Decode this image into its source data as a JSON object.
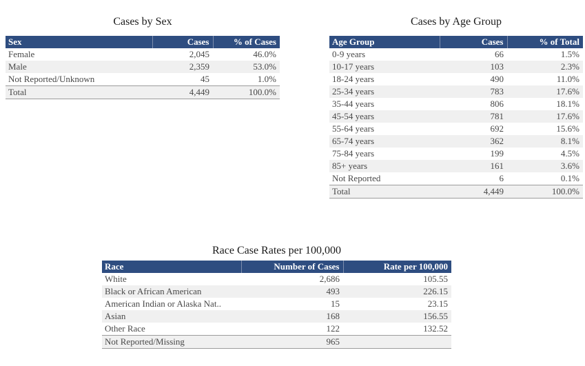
{
  "colors": {
    "header_bg": "#2e4d80",
    "header_text": "#ffffff",
    "alt_row_bg": "#f0f0f0",
    "body_text": "#484848",
    "title_text": "#1a1a1a",
    "total_rule": "#9b9b9b"
  },
  "tables": [
    {
      "id": "cases-by-sex",
      "title": "Cases by Sex",
      "columns": [
        "Sex",
        "Cases",
        "% of Cases"
      ],
      "rows": [
        [
          "Female",
          "2,045",
          "46.0%"
        ],
        [
          "Male",
          "2,359",
          "53.0%"
        ],
        [
          "Not Reported/Unknown",
          "45",
          "1.0%"
        ],
        [
          "Total",
          "4,449",
          "100.0%"
        ]
      ]
    },
    {
      "id": "cases-by-age-group",
      "title": "Cases by Age Group",
      "columns": [
        "Age Group",
        "Cases",
        "% of Total"
      ],
      "rows": [
        [
          "0-9 years",
          "66",
          "1.5%"
        ],
        [
          "10-17 years",
          "103",
          "2.3%"
        ],
        [
          "18-24 years",
          "490",
          "11.0%"
        ],
        [
          "25-34 years",
          "783",
          "17.6%"
        ],
        [
          "35-44 years",
          "806",
          "18.1%"
        ],
        [
          "45-54 years",
          "781",
          "17.6%"
        ],
        [
          "55-64 years",
          "692",
          "15.6%"
        ],
        [
          "65-74 years",
          "362",
          "8.1%"
        ],
        [
          "75-84 years",
          "199",
          "4.5%"
        ],
        [
          "85+ years",
          "161",
          "3.6%"
        ],
        [
          "Not Reported",
          "6",
          "0.1%"
        ],
        [
          "Total",
          "4,449",
          "100.0%"
        ]
      ]
    },
    {
      "id": "race-case-rates",
      "title": "Race Case Rates per 100,000",
      "columns": [
        "Race",
        "Number of Cases",
        "Rate per 100,000"
      ],
      "rows": [
        [
          "White",
          "2,686",
          "105.55"
        ],
        [
          "Black or African American",
          "493",
          "226.15"
        ],
        [
          "American Indian or Alaska Nat..",
          "15",
          "23.15"
        ],
        [
          "Asian",
          "168",
          "156.55"
        ],
        [
          "Other Race",
          "122",
          "132.52"
        ],
        [
          "Not Reported/Missing",
          "965",
          ""
        ]
      ]
    }
  ],
  "chart_data": [
    {
      "type": "table",
      "title": "Cases by Sex",
      "columns": [
        "Sex",
        "Cases",
        "% of Cases"
      ],
      "rows": [
        [
          "Female",
          2045,
          46.0
        ],
        [
          "Male",
          2359,
          53.0
        ],
        [
          "Not Reported/Unknown",
          45,
          1.0
        ],
        [
          "Total",
          4449,
          100.0
        ]
      ]
    },
    {
      "type": "table",
      "title": "Cases by Age Group",
      "columns": [
        "Age Group",
        "Cases",
        "% of Total"
      ],
      "rows": [
        [
          "0-9 years",
          66,
          1.5
        ],
        [
          "10-17 years",
          103,
          2.3
        ],
        [
          "18-24 years",
          490,
          11.0
        ],
        [
          "25-34 years",
          783,
          17.6
        ],
        [
          "35-44 years",
          806,
          18.1
        ],
        [
          "45-54 years",
          781,
          17.6
        ],
        [
          "55-64 years",
          692,
          15.6
        ],
        [
          "65-74 years",
          362,
          8.1
        ],
        [
          "75-84 years",
          199,
          4.5
        ],
        [
          "85+ years",
          161,
          3.6
        ],
        [
          "Not Reported",
          6,
          0.1
        ],
        [
          "Total",
          4449,
          100.0
        ]
      ]
    },
    {
      "type": "table",
      "title": "Race Case Rates per 100,000",
      "columns": [
        "Race",
        "Number of Cases",
        "Rate per 100,000"
      ],
      "rows": [
        [
          "White",
          2686,
          105.55
        ],
        [
          "Black or African American",
          493,
          226.15
        ],
        [
          "American Indian or Alaska Nat..",
          15,
          23.15
        ],
        [
          "Asian",
          168,
          156.55
        ],
        [
          "Other Race",
          122,
          132.52
        ],
        [
          "Not Reported/Missing",
          965,
          null
        ]
      ]
    }
  ]
}
